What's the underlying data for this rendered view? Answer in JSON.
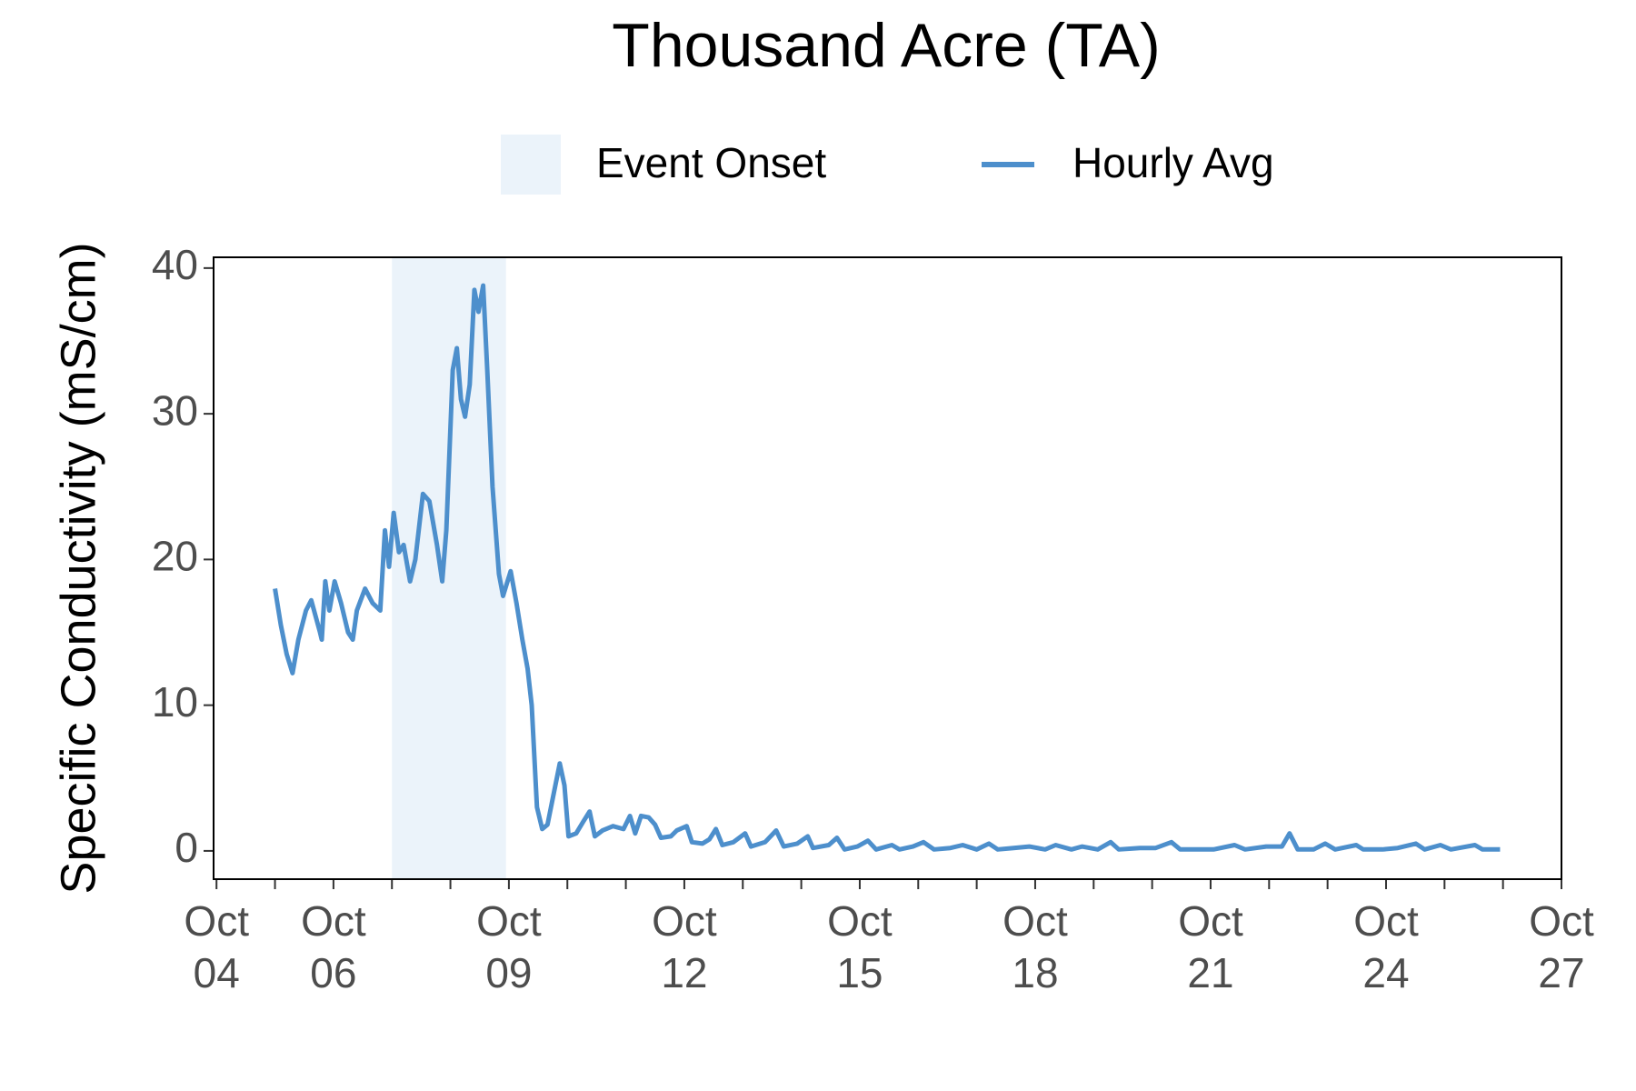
{
  "chart_data": {
    "type": "line",
    "title": "Thousand Acre (TA)",
    "y_label": "Specific Conductivity (mS/cm)",
    "event": {
      "name": "Event Onset",
      "x": [
        7,
        8.95
      ],
      "color": "#ebf3fa"
    },
    "x": [
      5.0,
      5.1,
      5.2,
      5.3,
      5.4,
      5.53,
      5.62,
      5.77,
      5.8,
      5.86,
      5.93,
      6.02,
      6.13,
      6.25,
      6.33,
      6.4,
      6.54,
      6.67,
      6.8,
      6.88,
      6.95,
      7.03,
      7.12,
      7.2,
      7.31,
      7.4,
      7.53,
      7.64,
      7.77,
      7.86,
      7.93,
      8.04,
      8.11,
      8.18,
      8.25,
      8.33,
      8.41,
      8.48,
      8.56,
      8.63,
      8.72,
      8.83,
      8.9,
      9.03,
      9.13,
      9.23,
      9.32,
      9.39,
      9.48,
      9.57,
      9.66,
      9.77,
      9.87,
      9.95,
      10.02,
      10.15,
      10.27,
      10.38,
      10.47,
      10.6,
      10.78,
      10.96,
      11.07,
      11.16,
      11.26,
      11.39,
      11.5,
      11.6,
      11.77,
      11.87,
      12.04,
      12.13,
      12.31,
      12.43,
      12.54,
      12.65,
      12.84,
      13.04,
      13.14,
      13.38,
      13.57,
      13.7,
      13.93,
      14.11,
      14.2,
      14.47,
      14.61,
      14.74,
      14.96,
      15.14,
      15.28,
      15.55,
      15.68,
      15.91,
      16.09,
      16.27,
      16.55,
      16.76,
      17.0,
      17.21,
      17.36,
      17.63,
      17.9,
      18.17,
      18.35,
      18.62,
      18.8,
      19.07,
      19.29,
      19.43,
      19.79,
      20.06,
      20.33,
      20.48,
      20.78,
      21.05,
      21.41,
      21.59,
      21.95,
      22.22,
      22.35,
      22.49,
      22.76,
      22.96,
      23.13,
      23.49,
      23.61,
      23.94,
      24.2,
      24.51,
      24.66,
      24.93,
      25.11,
      25.52,
      25.65,
      25.95
    ],
    "series": [
      {
        "name": "Hourly Avg",
        "color": "#4d8fcc",
        "values": [
          18,
          15.5,
          13.5,
          12.2,
          14.5,
          16.5,
          17.2,
          15,
          14.5,
          18.5,
          16.5,
          18.5,
          17,
          15,
          14.5,
          16.5,
          18,
          17,
          16.5,
          22,
          19.5,
          23.2,
          20.5,
          21,
          18.5,
          20,
          24.5,
          24,
          21,
          18.5,
          22,
          33,
          34.5,
          31,
          29.8,
          32,
          38.5,
          37,
          38.8,
          33,
          25,
          19,
          17.5,
          19.2,
          17,
          14.5,
          12.5,
          10,
          3,
          1.5,
          1.8,
          4,
          6,
          4.5,
          1,
          1.2,
          2,
          2.7,
          1,
          1.4,
          1.7,
          1.5,
          2.4,
          1.2,
          2.4,
          2.3,
          1.8,
          0.9,
          1,
          1.4,
          1.7,
          0.6,
          0.5,
          0.8,
          1.5,
          0.4,
          0.6,
          1.2,
          0.3,
          0.6,
          1.4,
          0.3,
          0.5,
          1.0,
          0.2,
          0.4,
          0.9,
          0.1,
          0.3,
          0.7,
          0.1,
          0.4,
          0.1,
          0.3,
          0.6,
          0.1,
          0.2,
          0.4,
          0.1,
          0.5,
          0.1,
          0.2,
          0.3,
          0.1,
          0.4,
          0.1,
          0.3,
          0.1,
          0.6,
          0.1,
          0.2,
          0.2,
          0.6,
          0.1,
          0.1,
          0.1,
          0.4,
          0.1,
          0.3,
          0.3,
          1.2,
          0.1,
          0.1,
          0.5,
          0.1,
          0.4,
          0.1,
          0.1,
          0.2,
          0.5,
          0.1,
          0.4,
          0.1,
          0.4,
          0.1,
          0.1
        ]
      }
    ],
    "xlim": [
      3.95,
      27.0
    ],
    "xticks": [
      {
        "value": 4,
        "label": "Oct 04"
      },
      {
        "value": 6,
        "label": "Oct 06"
      },
      {
        "value": 9,
        "label": "Oct 09"
      },
      {
        "value": 12,
        "label": "Oct 12"
      },
      {
        "value": 15,
        "label": "Oct 15"
      },
      {
        "value": 18,
        "label": "Oct 18"
      },
      {
        "value": 21,
        "label": "Oct 21"
      },
      {
        "value": 24,
        "label": "Oct 24"
      },
      {
        "value": 27,
        "label": "Oct 27"
      }
    ],
    "xminorticks": [
      5,
      7,
      8,
      10,
      11,
      13,
      14,
      16,
      17,
      19,
      20,
      22,
      23,
      25,
      26
    ],
    "ylim": [
      -1.94,
      40.74
    ],
    "yticks": [
      0,
      10,
      20,
      30,
      40
    ],
    "grid": false,
    "legend": "top"
  }
}
